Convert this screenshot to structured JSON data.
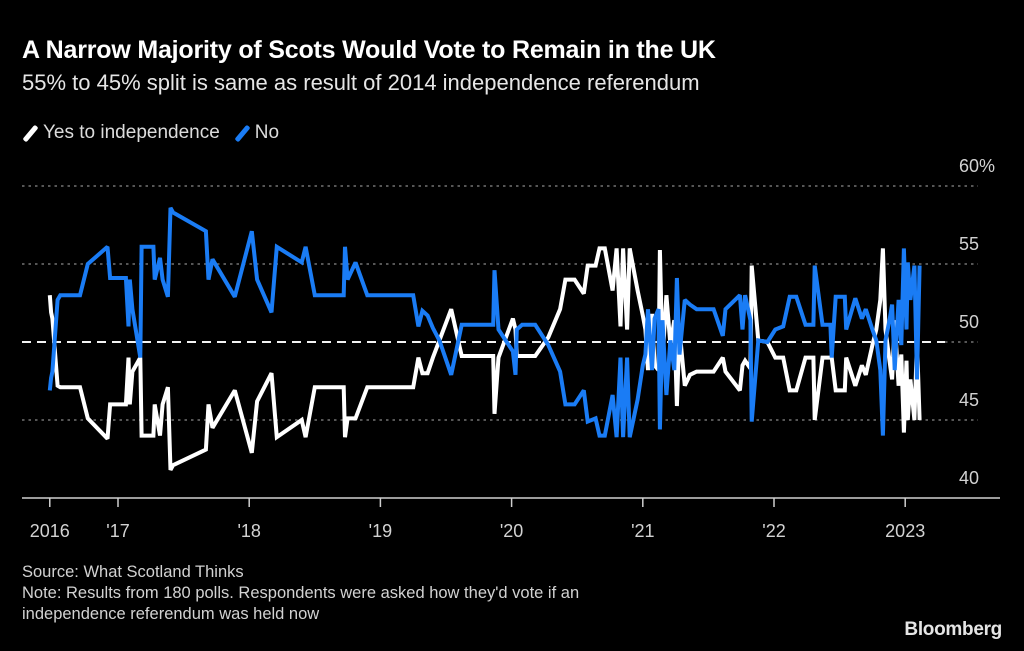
{
  "header": {
    "title": "A Narrow Majority of Scots Would Vote to Remain in the UK",
    "subtitle": "55% to 45% split is same as result of 2014 independence referendum"
  },
  "legend": [
    {
      "label": "Yes to independence",
      "color": "#ffffff"
    },
    {
      "label": "No",
      "color": "#1a7cf5"
    }
  ],
  "footer": {
    "source": "Source: What Scotland Thinks",
    "note_line1": "Note: Results from 180 polls. Respondents were asked how they'd vote if an",
    "note_line2": "independence referendum was held now"
  },
  "logo": "Bloomberg",
  "chart_data": {
    "type": "line",
    "title": "A Narrow Majority of Scots Would Vote to Remain in the UK",
    "subtitle": "55% to 45% split is same as result of 2014 independence referendum",
    "xlabel": "",
    "ylabel": "",
    "x_unit": "decimal year",
    "xlim": [
      2015.73,
      2023.67
    ],
    "ylim": [
      40,
      60
    ],
    "y_ticks": [
      {
        "value": 60,
        "label": "60%"
      },
      {
        "value": 55,
        "label": "55"
      },
      {
        "value": 50,
        "label": "50"
      },
      {
        "value": 45,
        "label": "45"
      },
      {
        "value": 40,
        "label": "40"
      }
    ],
    "x_ticks": [
      {
        "value": 2016.48,
        "label": "2016"
      },
      {
        "value": 2017,
        "label": "'17"
      },
      {
        "value": 2018,
        "label": "'18"
      },
      {
        "value": 2019,
        "label": "'19"
      },
      {
        "value": 2020,
        "label": "'20"
      },
      {
        "value": 2021,
        "label": "'21"
      },
      {
        "value": 2022,
        "label": "'22"
      },
      {
        "value": 2023,
        "label": "2023"
      }
    ],
    "reference_line": {
      "value": 50,
      "style": "dashed"
    },
    "grid": true,
    "legend_position": "top-left",
    "axis_position": "right",
    "x": [
      2016.48,
      2016.49,
      2016.5,
      2016.54,
      2016.56,
      2016.71,
      2016.77,
      2016.92,
      2016.94,
      2017.06,
      2017.08,
      2017.09,
      2017.11,
      2017.17,
      2017.18,
      2017.27,
      2017.28,
      2017.32,
      2017.34,
      2017.38,
      2017.4,
      2017.42,
      2017.67,
      2017.69,
      2017.72,
      2017.89,
      2018.02,
      2018.06,
      2018.17,
      2018.21,
      2018.4,
      2018.43,
      2018.5,
      2018.72,
      2018.73,
      2018.75,
      2018.81,
      2018.9,
      2019.25,
      2019.29,
      2019.32,
      2019.36,
      2019.4,
      2019.45,
      2019.54,
      2019.62,
      2019.86,
      2019.87,
      2019.9,
      2020.01,
      2020.03,
      2020.04,
      2020.08,
      2020.18,
      2020.28,
      2020.37,
      2020.41,
      2020.48,
      2020.55,
      2020.58,
      2020.64,
      2020.67,
      2020.71,
      2020.77,
      2020.8,
      2020.83,
      2020.85,
      2020.88,
      2020.9,
      2020.96,
      2021.0,
      2021.02,
      2021.04,
      2021.07,
      2021.09,
      2021.12,
      2021.13,
      2021.15,
      2021.18,
      2021.21,
      2021.24,
      2021.26,
      2021.28,
      2021.32,
      2021.36,
      2021.41,
      2021.54,
      2021.61,
      2021.63,
      2021.74,
      2021.76,
      2021.78,
      2021.82,
      2021.83,
      2021.88,
      2021.95,
      2022.01,
      2022.07,
      2022.12,
      2022.17,
      2022.24,
      2022.3,
      2022.31,
      2022.37,
      2022.43,
      2022.44,
      2022.47,
      2022.54,
      2022.55,
      2022.62,
      2022.67,
      2022.7,
      2022.75,
      2022.78,
      2022.81,
      2022.83,
      2022.85,
      2022.88,
      2022.9,
      2022.92,
      2022.95,
      2022.97,
      2022.99,
      2023.01,
      2023.02,
      2023.04,
      2023.07,
      2023.09,
      2023.11
    ],
    "series": [
      {
        "name": "Yes to independence",
        "color": "#ffffff",
        "values": [
          53.0,
          51.9,
          51.5,
          47.2,
          47.1,
          47.1,
          45.1,
          43.8,
          46.0,
          46.0,
          49.0,
          46.0,
          48.1,
          49.0,
          44.0,
          44.0,
          46.0,
          44.0,
          46.0,
          47.1,
          41.8,
          42.1,
          43.1,
          46.0,
          44.5,
          46.9,
          42.9,
          46.2,
          48.0,
          43.9,
          45.0,
          43.9,
          47.1,
          47.1,
          43.9,
          45.1,
          45.1,
          47.1,
          47.1,
          49.0,
          48.0,
          48.0,
          49.0,
          50.1,
          52.1,
          49.1,
          49.1,
          45.4,
          49.0,
          51.5,
          50.8,
          49.1,
          49.1,
          49.1,
          50.3,
          52.1,
          54.0,
          54.0,
          53.1,
          54.9,
          54.9,
          56.0,
          56.0,
          53.3,
          56.0,
          51.0,
          56.0,
          50.8,
          56.0,
          53.3,
          51.7,
          50.8,
          48.2,
          51.8,
          48.5,
          48.2,
          55.9,
          48.8,
          53.0,
          49.8,
          51.4,
          45.9,
          50.8,
          47.2,
          47.9,
          48.1,
          48.1,
          49.0,
          48.1,
          46.9,
          48.5,
          48.8,
          48.3,
          54.9,
          50.1,
          50.0,
          49.0,
          49.0,
          46.9,
          46.9,
          49.0,
          49.0,
          45.0,
          49.0,
          49.0,
          49.0,
          46.9,
          46.9,
          49.0,
          47.2,
          48.5,
          47.9,
          49.8,
          50.8,
          52.7,
          56.0,
          50.8,
          48.8,
          47.6,
          51.4,
          47.2,
          49.2,
          44.2,
          48.8,
          45.0,
          47.6,
          45.0,
          50.1,
          45.0
        ]
      },
      {
        "name": "No",
        "color": "#1a7cf5",
        "values": [
          46.9,
          47.7,
          48.1,
          52.7,
          53.0,
          53.0,
          55.0,
          56.1,
          54.1,
          54.1,
          51.0,
          54.0,
          52.1,
          49.0,
          56.1,
          56.1,
          54.0,
          55.4,
          54.0,
          52.9,
          58.6,
          58.3,
          57.1,
          54.0,
          55.3,
          52.9,
          57.1,
          54.0,
          51.9,
          56.1,
          55.1,
          56.1,
          53.0,
          53.0,
          56.1,
          54.0,
          55.1,
          53.0,
          53.0,
          51.0,
          52.0,
          51.7,
          50.9,
          50.1,
          47.9,
          51.1,
          51.1,
          54.6,
          50.8,
          49.4,
          47.9,
          50.8,
          51.1,
          51.1,
          49.8,
          48.1,
          46.0,
          46.0,
          46.9,
          44.9,
          45.1,
          44.0,
          44.0,
          46.6,
          43.9,
          49.0,
          43.9,
          49.0,
          43.9,
          46.3,
          48.5,
          49.2,
          52.1,
          48.2,
          51.5,
          52.1,
          44.4,
          51.4,
          46.6,
          50.1,
          48.2,
          54.1,
          49.2,
          52.7,
          52.4,
          52.1,
          52.1,
          50.4,
          52.1,
          53.0,
          50.8,
          53.0,
          51.4,
          44.9,
          50.1,
          50.0,
          50.8,
          51.0,
          52.9,
          52.9,
          51.1,
          51.1,
          54.9,
          51.1,
          51.1,
          49.0,
          52.9,
          52.9,
          50.8,
          52.8,
          51.5,
          52.1,
          50.8,
          50.1,
          48.2,
          44.0,
          50.1,
          51.4,
          52.4,
          48.2,
          52.7,
          49.8,
          56.0,
          50.8,
          55.1,
          52.7,
          54.9,
          47.6,
          54.9
        ]
      }
    ]
  }
}
